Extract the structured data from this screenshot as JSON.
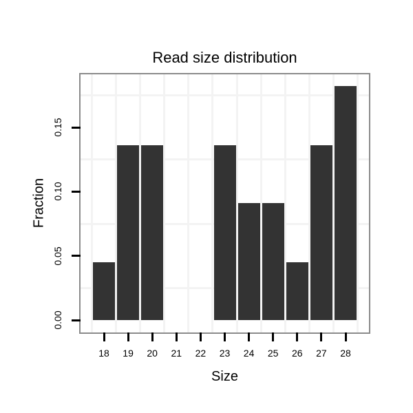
{
  "chart_data": {
    "type": "bar",
    "title": "Read size distribution",
    "xlabel": "Size",
    "ylabel": "Fraction",
    "categories": [
      "18",
      "19",
      "20",
      "21",
      "22",
      "23",
      "24",
      "25",
      "26",
      "27",
      "28"
    ],
    "values": [
      0.045,
      0.136,
      0.136,
      0,
      0,
      0.136,
      0.091,
      0.091,
      0.045,
      0.136,
      0.182
    ],
    "y_ticks": [
      {
        "label": "0.00",
        "value": 0.0
      },
      {
        "label": "0.05",
        "value": 0.05
      },
      {
        "label": "0.10",
        "value": 0.1
      },
      {
        "label": "0.15",
        "value": 0.15
      }
    ],
    "ylim": [
      -0.009,
      0.191
    ],
    "grid": "minor-only",
    "legend": "none",
    "colors": {
      "bar": "#333333",
      "panel_border": "#8a8a8a",
      "gridline": "#f3f3f3",
      "tick": "#000000",
      "text": "#000000"
    }
  }
}
